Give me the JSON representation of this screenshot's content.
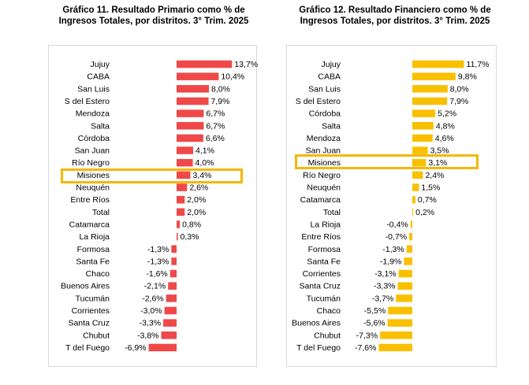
{
  "chart_data": [
    {
      "type": "bar",
      "orientation": "horizontal",
      "title": "Gráfico 11. Resultado Primario como % de",
      "subtitle": "Ingresos Totales, por distritos. 3° Trim. 2025",
      "categories": [
        "Jujuy",
        "CABA",
        "San Luis",
        "S del Estero",
        "Mendoza",
        "Salta",
        "Córdoba",
        "San Juan",
        "Río Negro",
        "Misiones",
        "Neuquén",
        "Entre Ríos",
        "Total",
        "Catamarca",
        "La Rioja",
        "Formosa",
        "Santa Fe",
        "Chaco",
        "Buenos Aires",
        "Tucumán",
        "Corrientes",
        "Santa Cruz",
        "Chubut",
        "T del Fuego"
      ],
      "values": [
        13.7,
        10.4,
        8.0,
        7.9,
        6.7,
        6.7,
        6.6,
        4.1,
        4.0,
        3.4,
        2.6,
        2.0,
        2.0,
        0.8,
        0.3,
        -1.3,
        -1.3,
        -1.6,
        -2.1,
        -2.6,
        -3.0,
        -3.3,
        -3.8,
        -6.9
      ],
      "labels": [
        "13,7%",
        "10,4%",
        "8,0%",
        "7,9%",
        "6,7%",
        "6,7%",
        "6,6%",
        "4,1%",
        "4,0%",
        "3,4%",
        "2,6%",
        "2,0%",
        "2,0%",
        "0,8%",
        "0,3%",
        "-1,3%",
        "-1,3%",
        "-1,6%",
        "-2,1%",
        "-2,6%",
        "-3,0%",
        "-3,3%",
        "-3,8%",
        "-6,9%"
      ],
      "highlight": "Misiones",
      "color": "#f04848",
      "highlight_color": "#f4b800",
      "grid": false,
      "legend": "none"
    },
    {
      "type": "bar",
      "orientation": "horizontal",
      "title": "Gráfico 12. Resultado Financiero como % de",
      "subtitle": "Ingresos Totales, por distritos. 3° Trim. 2025",
      "categories": [
        "Jujuy",
        "CABA",
        "San Luis",
        "S del Estero",
        "Córdoba",
        "Salta",
        "Mendoza",
        "San Juan",
        "Misiones",
        "Río Negro",
        "Neuquén",
        "Catamarca",
        "Total",
        "La Rioja",
        "Entre Ríos",
        "Formosa",
        "Santa Fe",
        "Corrientes",
        "Santa Cruz",
        "Tucumán",
        "Chaco",
        "Buenos Aires",
        "Chubut",
        "T del Fuego"
      ],
      "values": [
        11.7,
        9.8,
        8.0,
        7.9,
        5.2,
        4.8,
        4.6,
        3.5,
        3.1,
        2.4,
        1.5,
        0.7,
        0.2,
        -0.4,
        -0.7,
        -1.3,
        -1.9,
        -3.1,
        -3.3,
        -3.7,
        -5.5,
        -5.6,
        -7.3,
        -7.6
      ],
      "labels": [
        "11,7%",
        "9,8%",
        "8,0%",
        "7,9%",
        "5,2%",
        "4,8%",
        "4,6%",
        "3,5%",
        "3,1%",
        "2,4%",
        "1,5%",
        "0,7%",
        "0,2%",
        "-0,4%",
        "-0,7%",
        "-1,3%",
        "-1,9%",
        "-3,1%",
        "-3,3%",
        "-3,7%",
        "-5,5%",
        "-5,6%",
        "-7,3%",
        "-7,6%"
      ],
      "highlight": "Misiones",
      "color": "#f9c000",
      "highlight_color": "#f4b800",
      "grid": false,
      "legend": "none"
    }
  ]
}
